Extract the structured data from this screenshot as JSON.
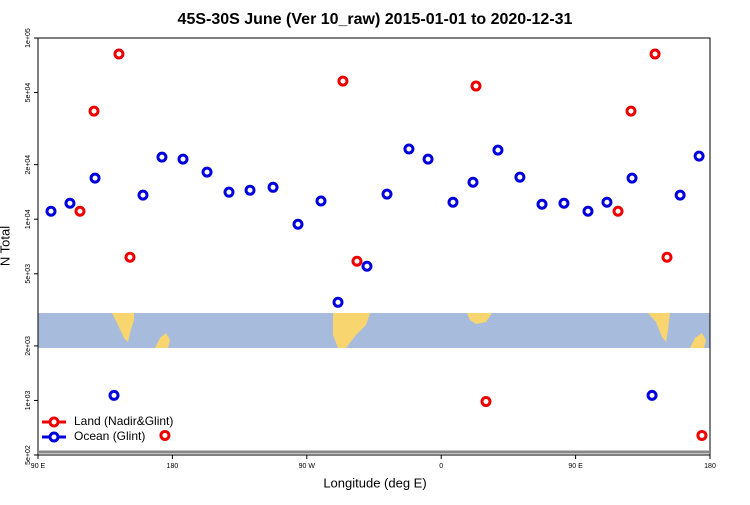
{
  "chart_data": {
    "type": "scatter",
    "title": "45S-30S June (Ver 10_raw)   2015-01-01 to 2020-12-31",
    "xlabel": "Longitude (deg E)",
    "ylabel": "N Total",
    "xlim": [
      90,
      540
    ],
    "xticks": [
      {
        "value": 90,
        "label": "90 E"
      },
      {
        "value": 180,
        "label": "180"
      },
      {
        "value": 270,
        "label": "90 W"
      },
      {
        "value": 360,
        "label": "0"
      },
      {
        "value": 450,
        "label": "90 E"
      },
      {
        "value": 540,
        "label": "180"
      }
    ],
    "ylim": [
      500,
      100000
    ],
    "log_y": true,
    "yticks": [
      {
        "value": 500,
        "label": "5e+02"
      },
      {
        "value": 1000,
        "label": "1e+03"
      },
      {
        "value": 2000,
        "label": "2e+03"
      },
      {
        "value": 5000,
        "label": "5e+03"
      },
      {
        "value": 10000,
        "label": "1e+04"
      },
      {
        "value": 20000,
        "label": "2e+04"
      },
      {
        "value": 50000,
        "label": "5e+04"
      },
      {
        "value": 100000,
        "label": "1e+05"
      }
    ],
    "legend": "lower left",
    "series": [
      {
        "name": "Land (Nadir&Glint)",
        "color": "#ee0000",
        "x": [
          118.1,
          127.5,
          144.2,
          151.6,
          175,
          294.2,
          303.6,
          383.3,
          390,
          478.4,
          487.1,
          503.2,
          511.2,
          534.6
        ],
        "values": [
          11070,
          39500,
          81600,
          6170,
          641,
          57800,
          5860,
          54300,
          986,
          11070,
          39500,
          81600,
          6170,
          641
        ]
      },
      {
        "name": "Ocean (Glint)",
        "color": "#0000dd",
        "x": [
          98.7,
          111.4,
          128.2,
          140.9,
          160.3,
          173,
          187.1,
          203.2,
          217.9,
          232,
          247.4,
          264.1,
          279.5,
          290.9,
          310.3,
          323.7,
          338.4,
          351.2,
          367.9,
          381.3,
          398,
          412.7,
          427.5,
          442.2,
          458.3,
          471,
          487.8,
          501.2,
          520,
          532.7
        ],
        "values": [
          11070,
          12250,
          16850,
          1066,
          13580,
          22000,
          21460,
          18200,
          14100,
          14460,
          15000,
          9380,
          12600,
          3480,
          5500,
          13750,
          24400,
          21460,
          12400,
          16000,
          24050,
          17060,
          12100,
          12250,
          11070,
          12400,
          16850,
          1066,
          13580,
          22300
        ]
      }
    ]
  }
}
